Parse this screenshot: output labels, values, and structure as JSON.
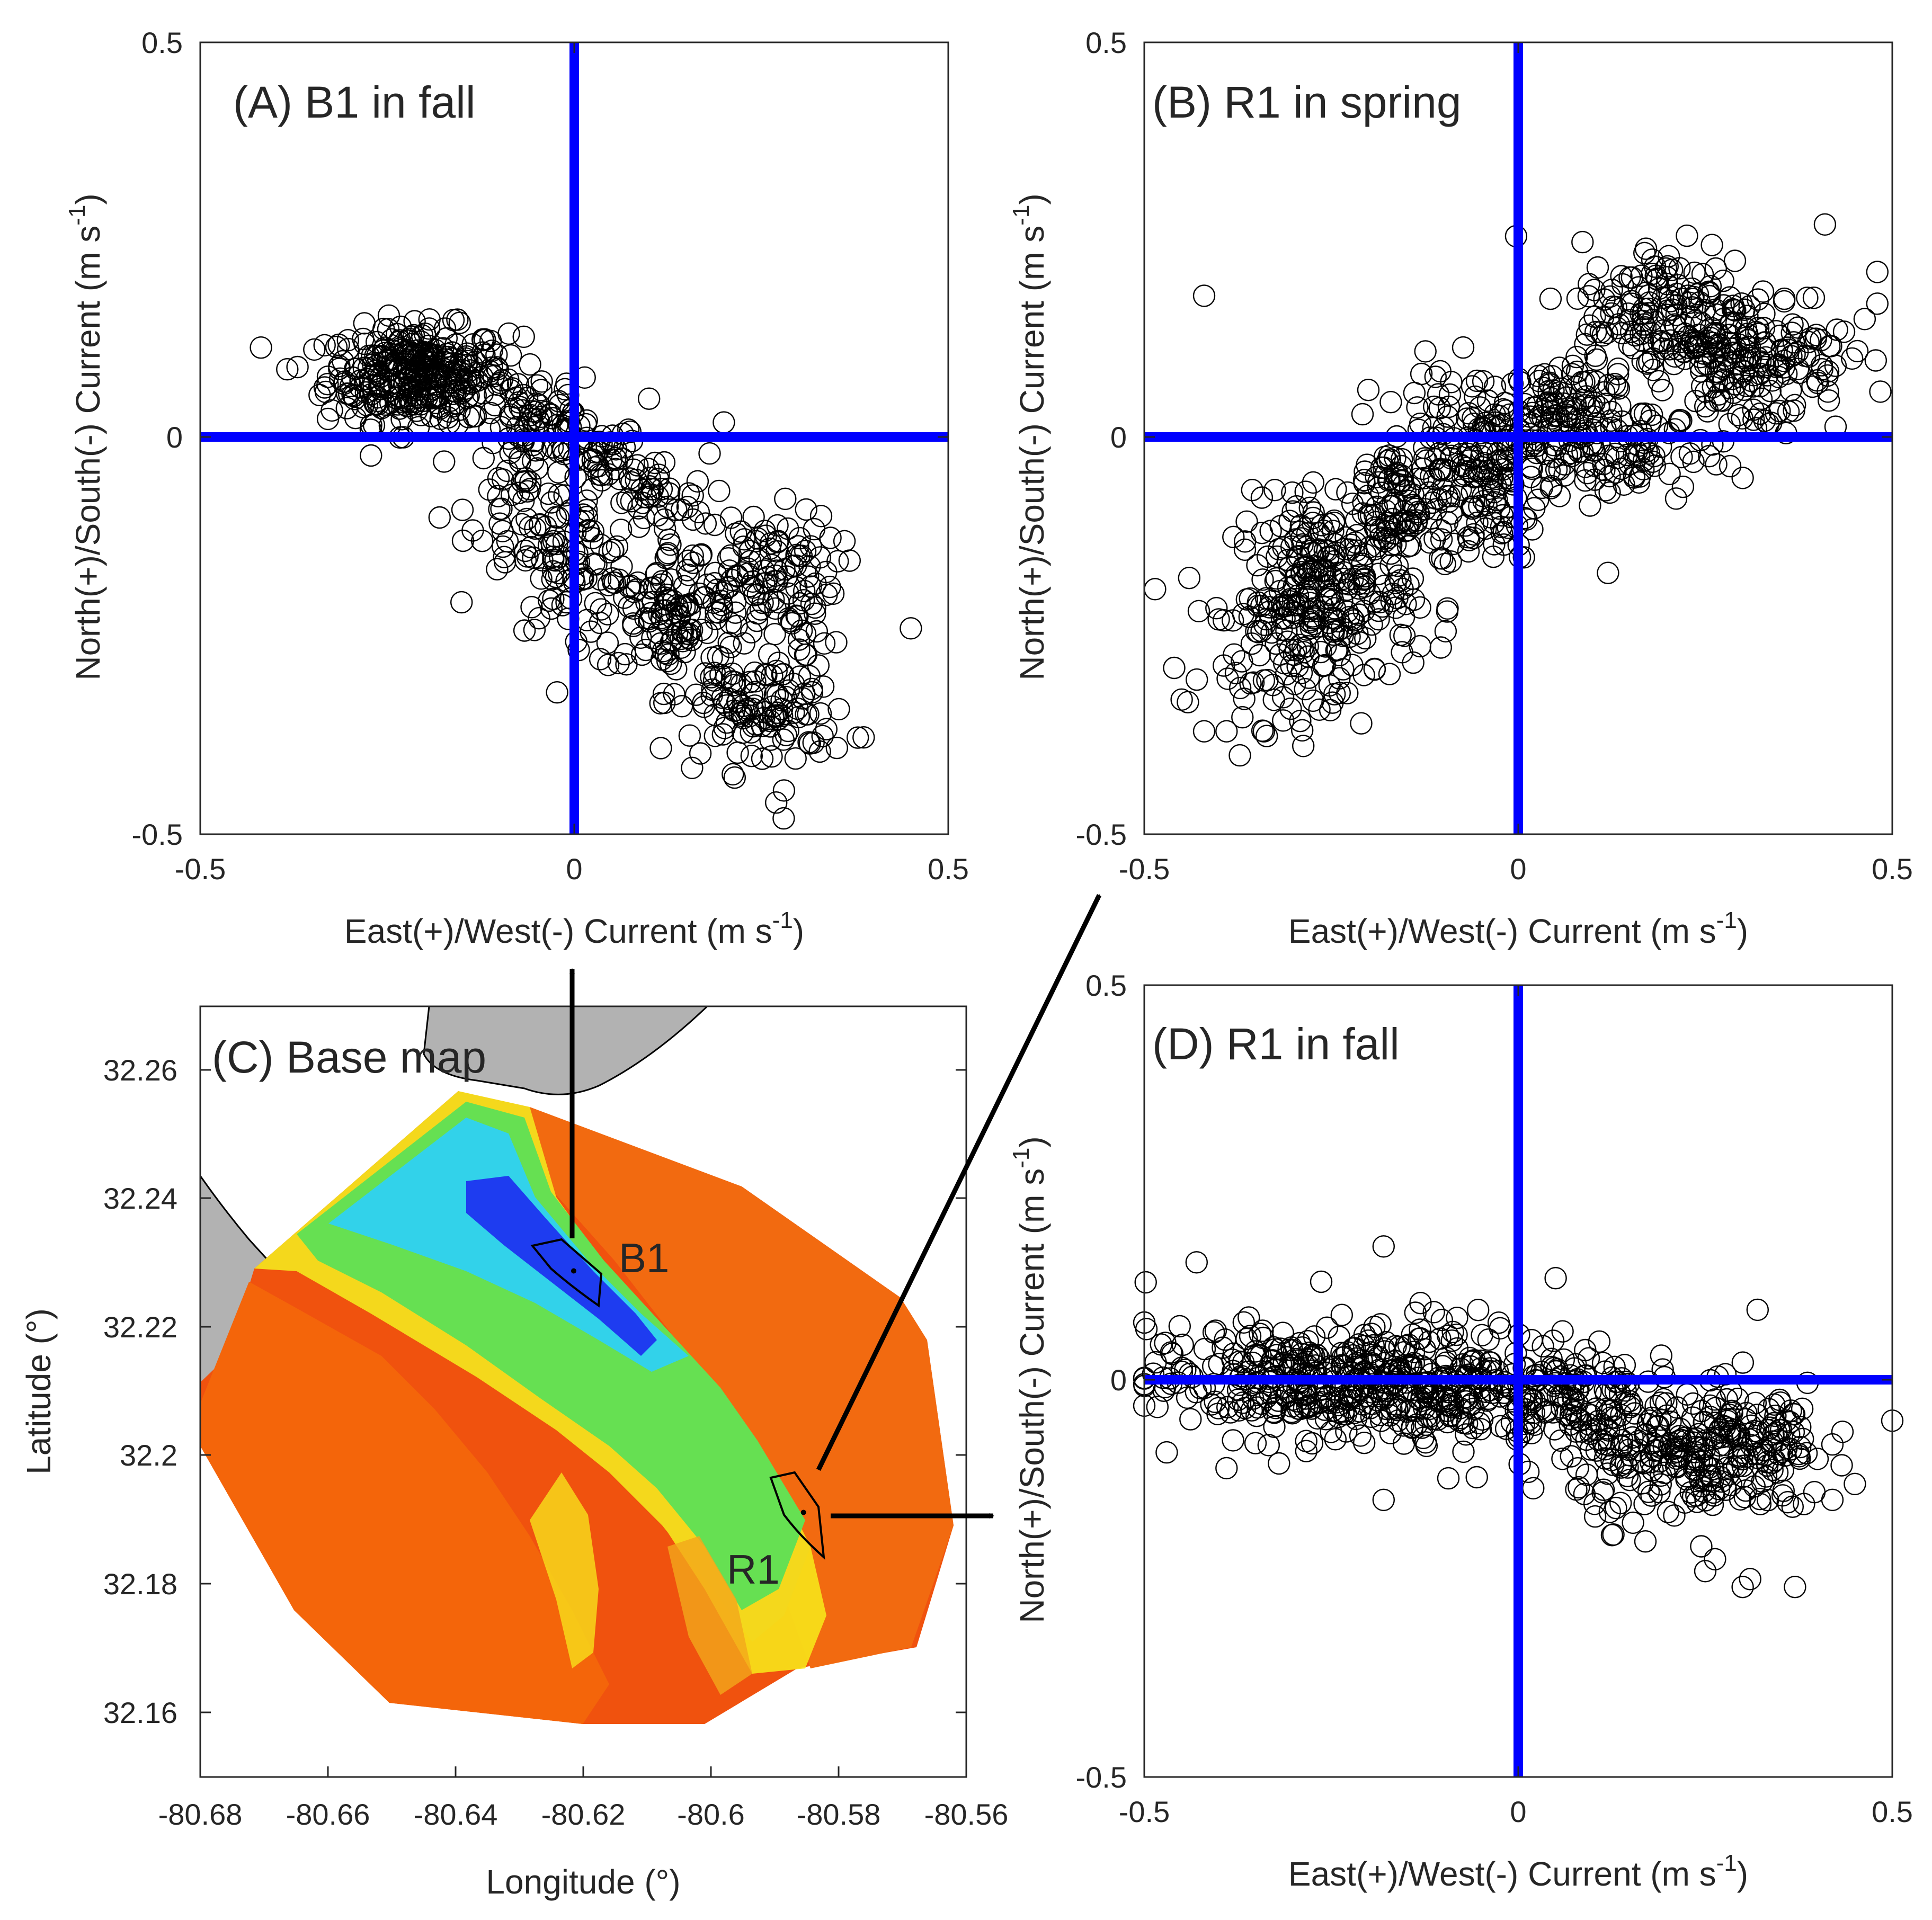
{
  "chart_data": [
    {
      "type": "scatter",
      "panel": "A",
      "title": "(A) B1 in fall",
      "xlabel": "East(+)/West(-) Current (m s",
      "ylabel": "North(+)/South(-) Current (m s",
      "unit_sup": "-1",
      "xlim": [
        -0.5,
        0.5
      ],
      "ylim": [
        -0.5,
        0.5
      ],
      "xticks": [
        "-0.5",
        "0",
        "0.5"
      ],
      "yticks": [
        "-0.5",
        "0",
        "0.5"
      ],
      "reference_lines": "zero axes (blue)",
      "clusters": [
        {
          "center": [
            -0.21,
            0.08
          ],
          "sx": 0.06,
          "sy": 0.03,
          "n": 330
        },
        {
          "center": [
            -0.05,
            0.03
          ],
          "sx": 0.04,
          "sy": 0.03,
          "n": 60
        },
        {
          "center": [
            0.03,
            -0.02
          ],
          "sx": 0.03,
          "sy": 0.02,
          "n": 40
        },
        {
          "center": [
            -0.06,
            -0.08
          ],
          "sx": 0.04,
          "sy": 0.05,
          "n": 60
        },
        {
          "center": [
            0.0,
            -0.16
          ],
          "sx": 0.04,
          "sy": 0.04,
          "n": 70
        },
        {
          "center": [
            0.1,
            -0.08
          ],
          "sx": 0.04,
          "sy": 0.03,
          "n": 50
        },
        {
          "center": [
            0.13,
            -0.22
          ],
          "sx": 0.05,
          "sy": 0.04,
          "n": 110
        },
        {
          "center": [
            0.25,
            -0.17
          ],
          "sx": 0.05,
          "sy": 0.04,
          "n": 110
        },
        {
          "center": [
            0.25,
            -0.34
          ],
          "sx": 0.06,
          "sy": 0.04,
          "n": 130
        }
      ],
      "outliers": [
        [
          0.45,
          -0.24
        ],
        [
          0.1,
          0.05
        ],
        [
          0.2,
          0.02
        ],
        [
          0.31,
          -0.09
        ],
        [
          0.28,
          -0.48
        ],
        [
          0.27,
          -0.46
        ],
        [
          -0.37,
          0.09
        ],
        [
          -0.18,
          -0.1
        ]
      ]
    },
    {
      "type": "scatter",
      "panel": "B",
      "title": "(B) R1 in spring",
      "xlabel": "East(+)/West(-) Current (m s",
      "ylabel": "North(+)/South(-) Current (m s",
      "unit_sup": "-1",
      "xlim": [
        -0.5,
        0.5
      ],
      "ylim": [
        -0.5,
        0.5
      ],
      "xticks": [
        "-0.5",
        "0",
        "0.5"
      ],
      "yticks": [
        "-0.5",
        "0",
        "0.5"
      ],
      "reference_lines": "zero axes (blue)",
      "clusters": [
        {
          "center": [
            -0.26,
            -0.2
          ],
          "sx": 0.06,
          "sy": 0.06,
          "n": 260
        },
        {
          "center": [
            -0.15,
            -0.09
          ],
          "sx": 0.05,
          "sy": 0.05,
          "n": 130
        },
        {
          "center": [
            -0.05,
            0.01
          ],
          "sx": 0.05,
          "sy": 0.04,
          "n": 110
        },
        {
          "center": [
            0.05,
            0.02
          ],
          "sx": 0.04,
          "sy": 0.04,
          "n": 90
        },
        {
          "center": [
            0.13,
            -0.02
          ],
          "sx": 0.06,
          "sy": 0.03,
          "n": 80
        },
        {
          "center": [
            0.2,
            0.15
          ],
          "sx": 0.06,
          "sy": 0.05,
          "n": 180
        },
        {
          "center": [
            0.32,
            0.1
          ],
          "sx": 0.06,
          "sy": 0.05,
          "n": 160
        },
        {
          "center": [
            -0.33,
            -0.28
          ],
          "sx": 0.04,
          "sy": 0.04,
          "n": 40
        },
        {
          "center": [
            -0.03,
            -0.09
          ],
          "sx": 0.03,
          "sy": 0.04,
          "n": 50
        }
      ],
      "outliers": [
        [
          -0.42,
          0.18
        ],
        [
          -0.46,
          -0.29
        ],
        [
          -0.45,
          -0.33
        ],
        [
          -0.42,
          -0.37
        ],
        [
          -0.39,
          -0.37
        ],
        [
          -0.34,
          -0.37
        ],
        [
          -0.21,
          -0.36
        ],
        [
          -0.22,
          -0.23
        ],
        [
          0.12,
          -0.17
        ],
        [
          0.3,
          -0.05
        ],
        [
          0.48,
          0.21
        ],
        [
          0.48,
          0.17
        ],
        [
          0.41,
          0.27
        ]
      ]
    },
    {
      "type": "map",
      "panel": "C",
      "title": "(C) Base map",
      "xlabel": "Longitude (°)",
      "ylabel": "Latitude (°)",
      "xlim": [
        -80.68,
        -80.56
      ],
      "ylim": [
        32.15,
        32.27
      ],
      "xticks": [
        "-80.68",
        "-80.66",
        "-80.64",
        "-80.62",
        "-80.6",
        "-80.58",
        "-80.56"
      ],
      "yticks": [
        "32.16",
        "32.18",
        "32.2",
        "32.22",
        "32.24",
        "32.26"
      ],
      "sites": [
        {
          "name": "B1",
          "lon": -80.6215,
          "lat": 32.2288
        },
        {
          "name": "R1",
          "lon": -80.5855,
          "lat": 32.1912
        }
      ],
      "colormap": "jet (blue = deep channel, red = shallow)"
    },
    {
      "type": "scatter",
      "panel": "D",
      "title": "(D) R1 in fall",
      "xlabel": "East(+)/West(-) Current (m s",
      "ylabel": "North(+)/South(-) Current (m s",
      "unit_sup": "-1",
      "xlim": [
        -0.5,
        0.5
      ],
      "ylim": [
        -0.5,
        0.5
      ],
      "xticks": [
        "-0.5",
        "0",
        "0.5"
      ],
      "yticks": [
        "-0.5",
        "0",
        "0.5"
      ],
      "reference_lines": "zero axes (blue)",
      "clusters": [
        {
          "center": [
            -0.3,
            0.0
          ],
          "sx": 0.1,
          "sy": 0.035,
          "n": 300
        },
        {
          "center": [
            -0.1,
            0.0
          ],
          "sx": 0.07,
          "sy": 0.04,
          "n": 200
        },
        {
          "center": [
            0.07,
            -0.02
          ],
          "sx": 0.05,
          "sy": 0.04,
          "n": 120
        },
        {
          "center": [
            0.22,
            -0.1
          ],
          "sx": 0.07,
          "sy": 0.04,
          "n": 200
        },
        {
          "center": [
            0.32,
            -0.08
          ],
          "sx": 0.05,
          "sy": 0.04,
          "n": 90
        }
      ],
      "outliers": [
        [
          -0.18,
          0.17
        ],
        [
          -0.43,
          0.15
        ],
        [
          -0.47,
          -0.09
        ],
        [
          -0.39,
          -0.11
        ],
        [
          -0.18,
          -0.15
        ],
        [
          0.05,
          0.13
        ],
        [
          0.32,
          0.09
        ],
        [
          0.25,
          -0.24
        ],
        [
          0.3,
          -0.26
        ],
        [
          0.31,
          -0.25
        ],
        [
          0.37,
          -0.26
        ],
        [
          0.5,
          -0.05
        ],
        [
          0.42,
          -0.08
        ],
        [
          0.45,
          -0.13
        ],
        [
          0.42,
          -0.15
        ]
      ]
    }
  ]
}
